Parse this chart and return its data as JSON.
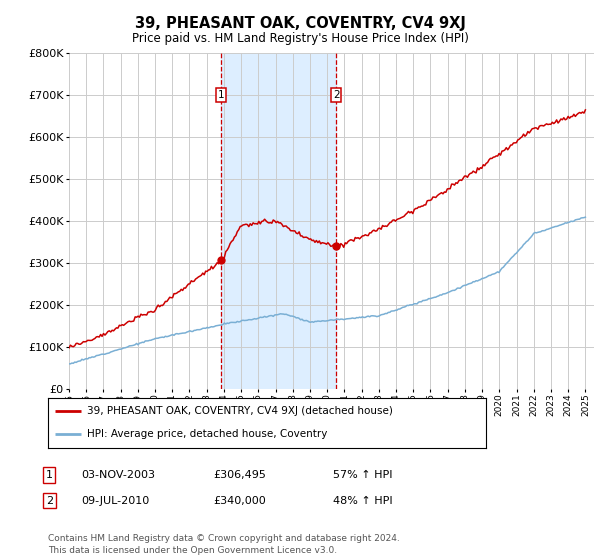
{
  "title": "39, PHEASANT OAK, COVENTRY, CV4 9XJ",
  "subtitle": "Price paid vs. HM Land Registry's House Price Index (HPI)",
  "legend_line1": "39, PHEASANT OAK, COVENTRY, CV4 9XJ (detached house)",
  "legend_line2": "HPI: Average price, detached house, Coventry",
  "sale1_date": "03-NOV-2003",
  "sale1_price": 306495,
  "sale1_label": "57% ↑ HPI",
  "sale2_date": "09-JUL-2010",
  "sale2_price": 340000,
  "sale2_label": "48% ↑ HPI",
  "footer": "Contains HM Land Registry data © Crown copyright and database right 2024.\nThis data is licensed under the Open Government Licence v3.0.",
  "ylim": [
    0,
    800000
  ],
  "yticks": [
    0,
    100000,
    200000,
    300000,
    400000,
    500000,
    600000,
    700000,
    800000
  ],
  "sale1_year": 2003.84,
  "sale2_year": 2010.52,
  "red_line_color": "#cc0000",
  "blue_line_color": "#7aafd4",
  "shade_color": "#ddeeff",
  "grid_color": "#cccccc",
  "background_color": "#ffffff"
}
